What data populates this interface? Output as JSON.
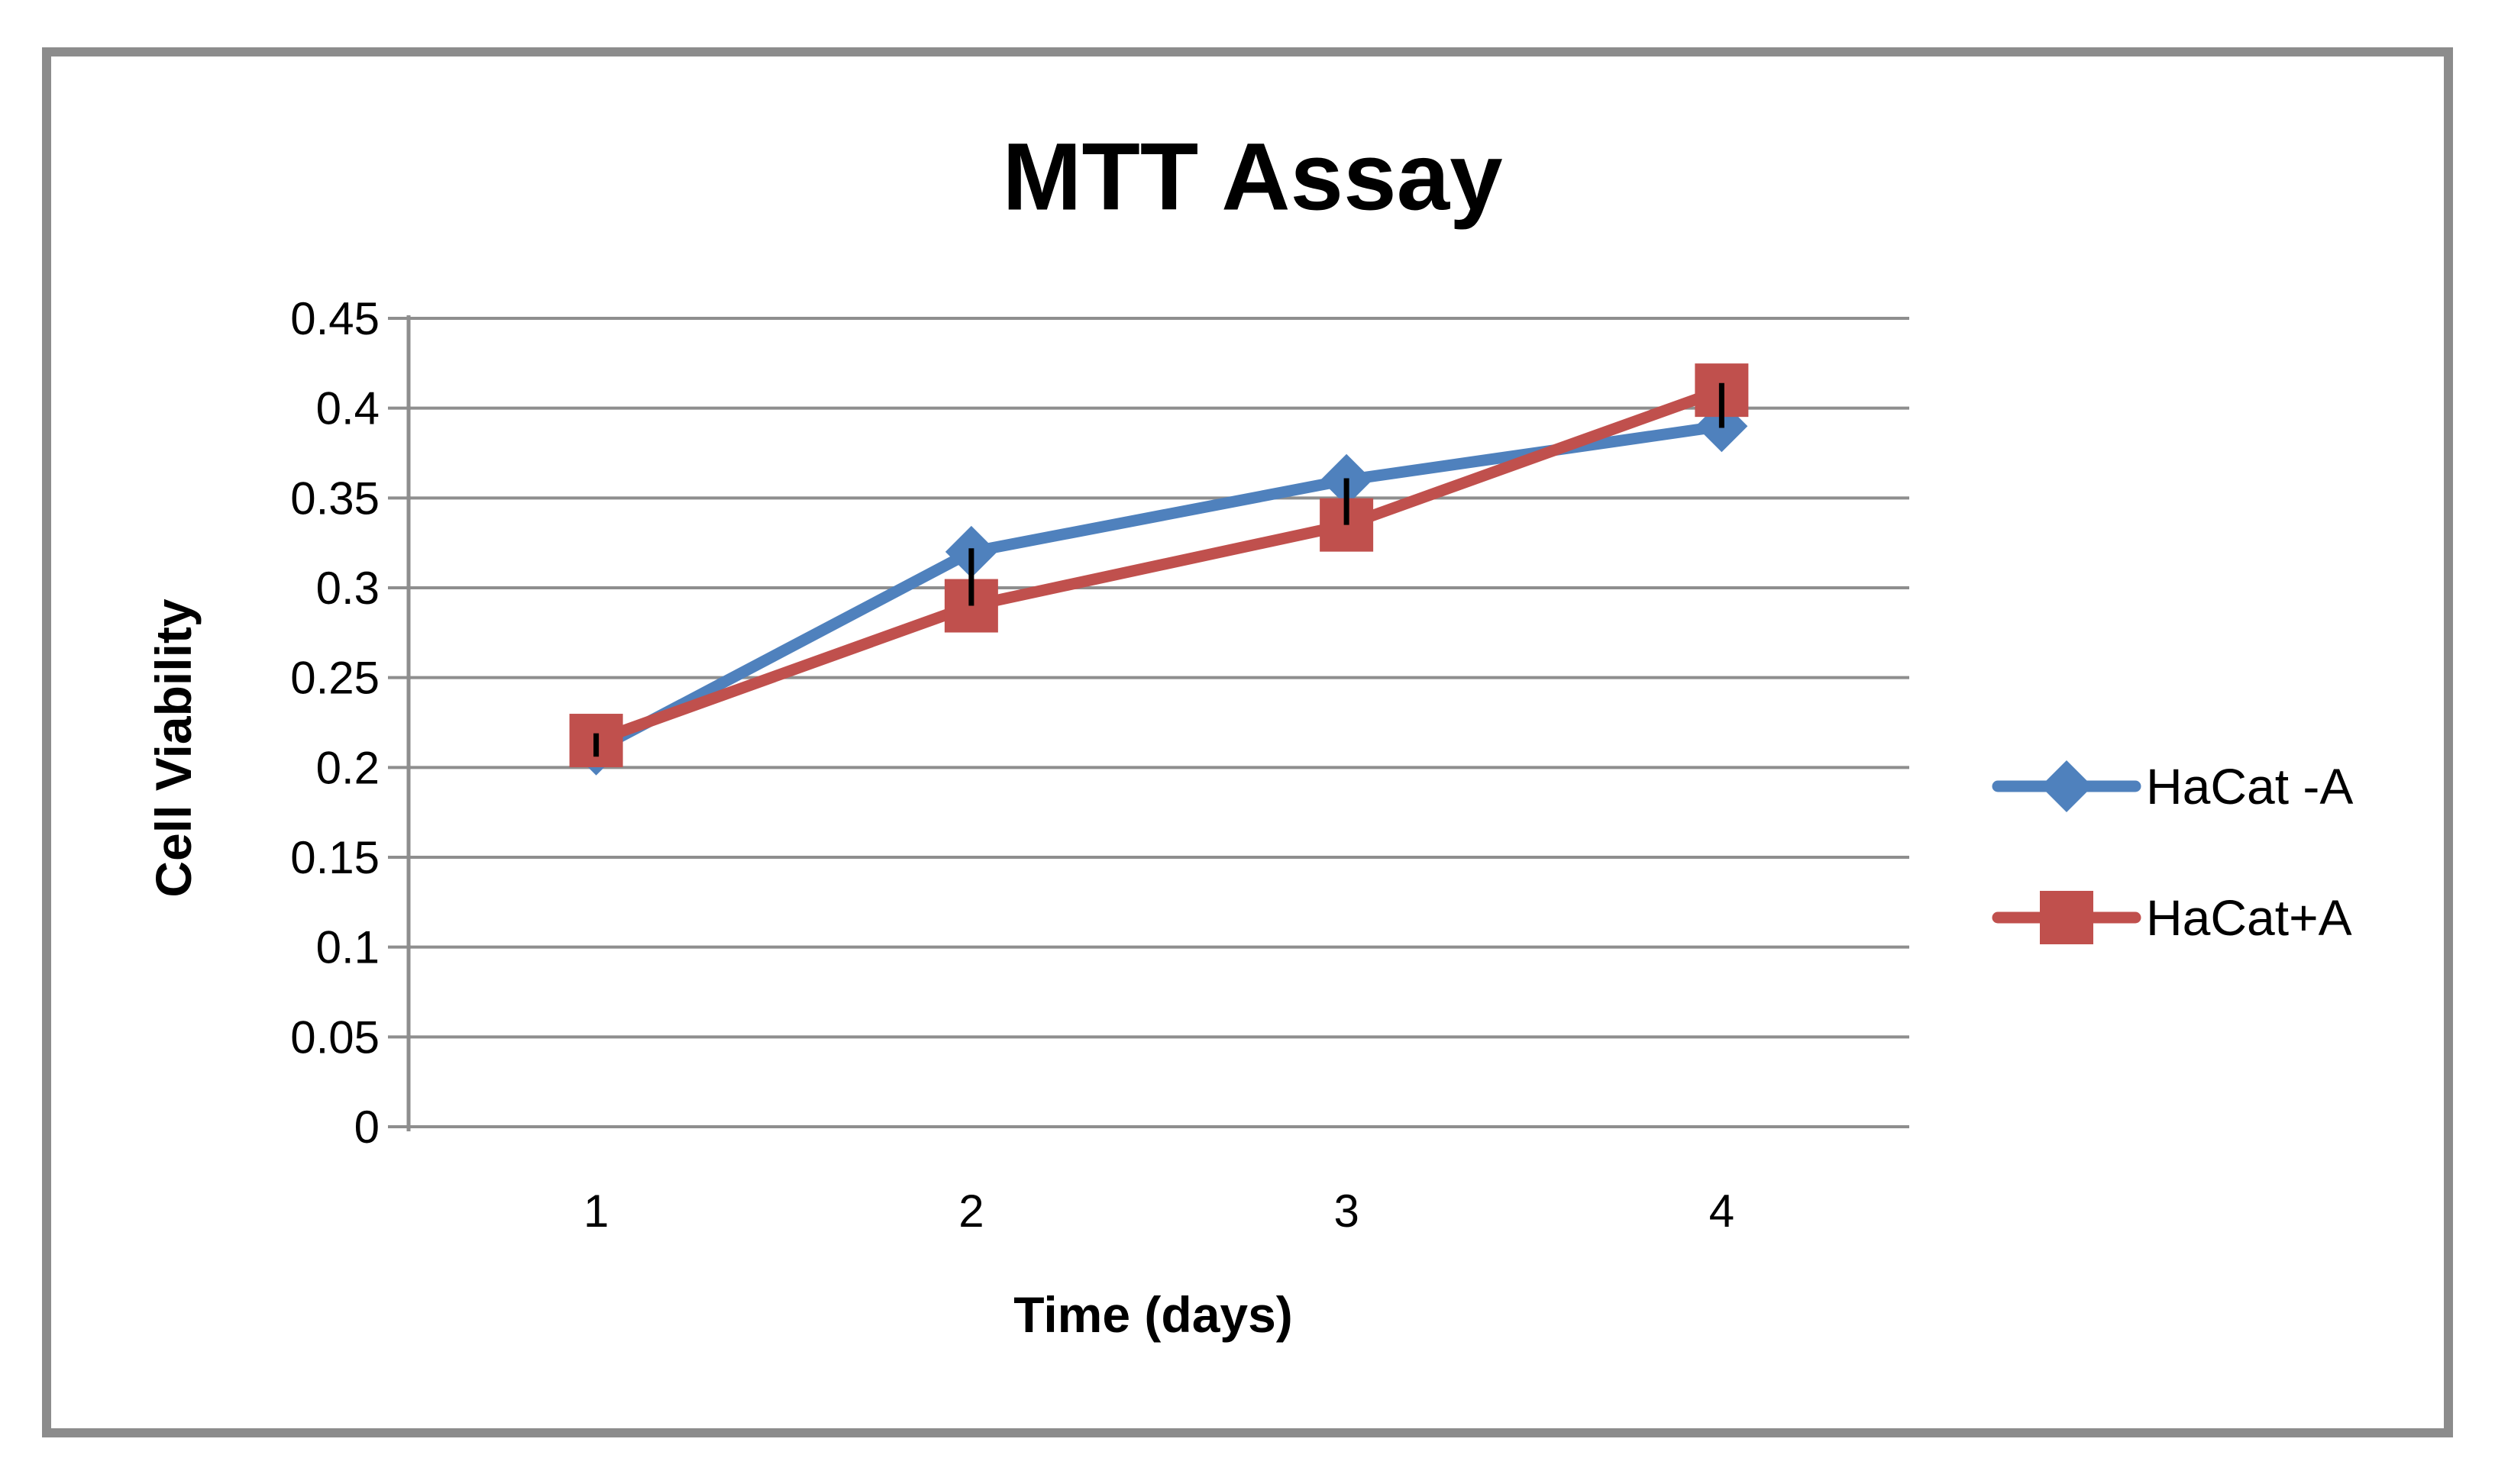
{
  "chart_data": {
    "type": "line",
    "title": "MTT Assay",
    "xlabel": "Time (days)",
    "ylabel": "Cell Viability",
    "categories": [
      "1",
      "2",
      "3",
      "4"
    ],
    "series": [
      {
        "name": "HaCat -A",
        "color": "#4F81BD",
        "marker": "diamond",
        "values": [
          0.21,
          0.32,
          0.36,
          0.39
        ]
      },
      {
        "name": "HaCat+A",
        "color": "#C0504D",
        "marker": "square",
        "values": [
          0.215,
          0.29,
          0.335,
          0.41
        ]
      }
    ],
    "error_bars": [
      {
        "category": "1",
        "low": 0.206,
        "high": 0.219
      },
      {
        "category": "2",
        "low": 0.29,
        "high": 0.322
      },
      {
        "category": "3",
        "low": 0.335,
        "high": 0.361
      },
      {
        "category": "4",
        "low": 0.389,
        "high": 0.414
      }
    ],
    "ylim": [
      0,
      0.45
    ],
    "y_tick_step": 0.05,
    "y_tick_labels": [
      "0",
      "0.05",
      "0.1",
      "0.15",
      "0.2",
      "0.25",
      "0.3",
      "0.35",
      "0.4",
      "0.45"
    ],
    "grid": "horizontal",
    "legend_position": "right",
    "gridline_color": "#8e8e8e",
    "axis_color": "#8e8e8e",
    "error_bar_color": "#000000",
    "frame_border_color": "#8c8c8c"
  }
}
